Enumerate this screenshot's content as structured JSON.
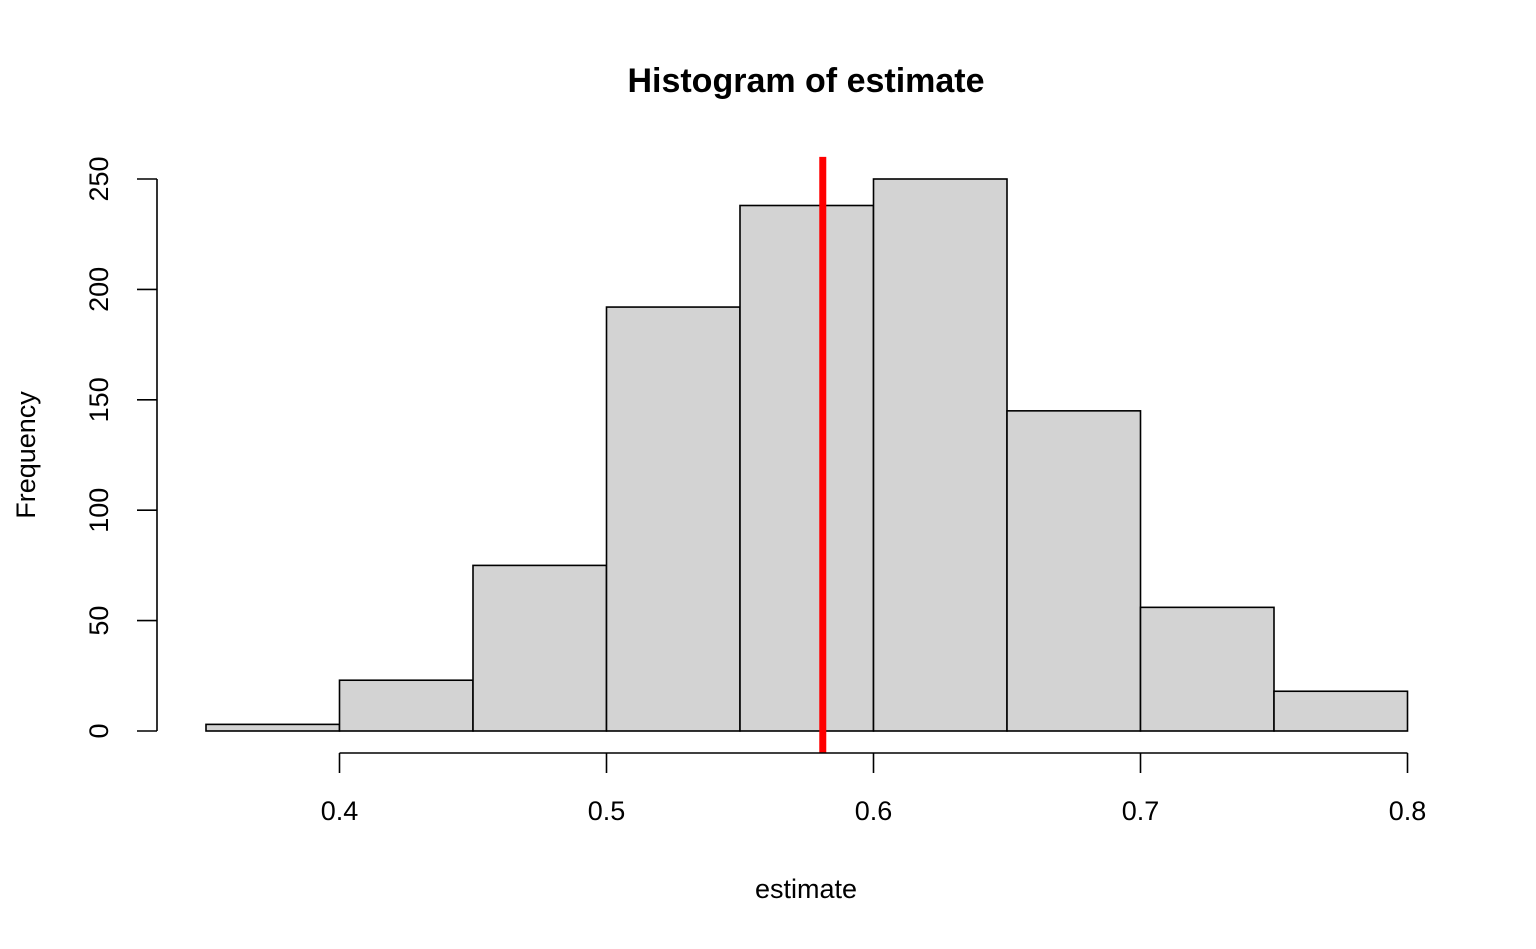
{
  "chart_data": {
    "type": "bar",
    "title": "Histogram of estimate",
    "xlabel": "estimate",
    "ylabel": "Frequency",
    "bins": [
      {
        "start": 0.35,
        "end": 0.4,
        "count": 3
      },
      {
        "start": 0.4,
        "end": 0.45,
        "count": 23
      },
      {
        "start": 0.45,
        "end": 0.5,
        "count": 75
      },
      {
        "start": 0.5,
        "end": 0.55,
        "count": 192
      },
      {
        "start": 0.55,
        "end": 0.6,
        "count": 238
      },
      {
        "start": 0.6,
        "end": 0.65,
        "count": 250
      },
      {
        "start": 0.65,
        "end": 0.7,
        "count": 145
      },
      {
        "start": 0.7,
        "end": 0.75,
        "count": 56
      },
      {
        "start": 0.75,
        "end": 0.8,
        "count": 18
      }
    ],
    "xlim": [
      0.35,
      0.8
    ],
    "ylim": [
      0,
      260
    ],
    "x_ticks": [
      0.4,
      0.5,
      0.6,
      0.7,
      0.8
    ],
    "x_tick_labels": [
      "0.4",
      "0.5",
      "0.6",
      "0.7",
      "0.8"
    ],
    "y_ticks": [
      0,
      50,
      100,
      150,
      200,
      250
    ],
    "y_tick_labels": [
      "0",
      "50",
      "100",
      "150",
      "200",
      "250"
    ],
    "reference_line": {
      "x": 0.581,
      "color": "#ff0000"
    },
    "bar_fill": "#d3d3d3",
    "grid": false
  }
}
